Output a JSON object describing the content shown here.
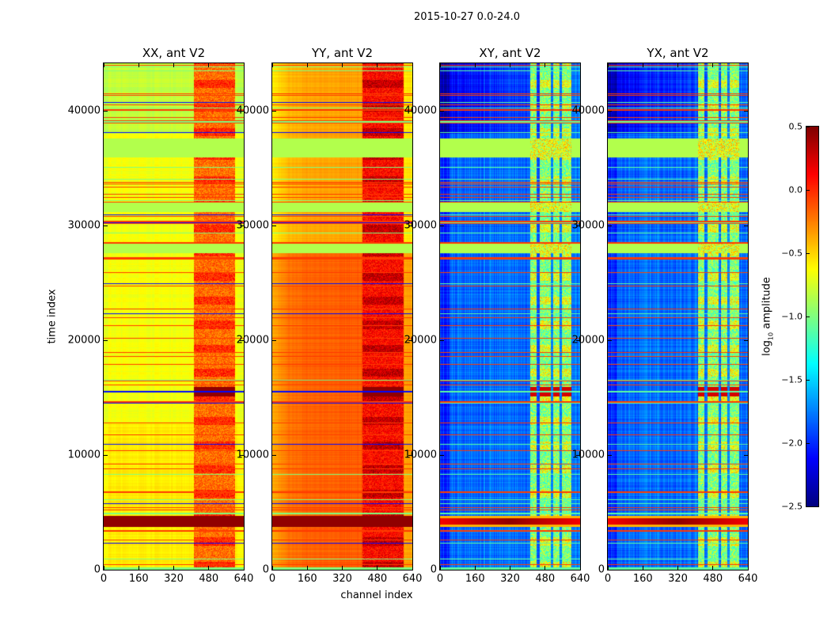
{
  "chart_data": {
    "type": "heatmap",
    "title": "2015-10-27 0.0-24.0",
    "xlabel": "channel index",
    "ylabel": "time index",
    "xlim": [
      0,
      640
    ],
    "ylim": [
      0,
      44140
    ],
    "xticks": [
      "0",
      "160",
      "320",
      "480",
      "640"
    ],
    "yticks": [
      "0",
      "10000",
      "20000",
      "30000",
      "40000"
    ],
    "xtick_values": [
      0,
      160,
      320,
      480,
      640
    ],
    "ytick_values": [
      0,
      10000,
      20000,
      30000,
      40000
    ],
    "colormap": "jet",
    "colorbar": {
      "label_prefix": "log",
      "label_sub": "10",
      "label_suffix": " amplitude",
      "range": [
        -2.5,
        0.5
      ],
      "ticks": [
        "0.5",
        "0.0",
        "−0.5",
        "−1.0",
        "−1.5",
        "−2.0",
        "−2.5"
      ],
      "tick_values": [
        0.5,
        0.0,
        -0.5,
        -1.0,
        -1.5,
        -2.0,
        -2.5
      ]
    },
    "panels": [
      {
        "title": "XX, ant V2",
        "base_log_amp": -0.65,
        "rfi_channel_range": [
          410,
          600
        ],
        "rfi_log_amp": -0.2
      },
      {
        "title": "YY, ant V2",
        "base_log_amp": -0.15,
        "rfi_channel_range": [
          410,
          600
        ],
        "rfi_log_amp": 0.1
      },
      {
        "title": "XY, ant V2",
        "base_log_amp": -1.8,
        "rfi_channel_range": [
          410,
          600
        ],
        "rfi_log_amp": -1.0
      },
      {
        "title": "YX, ant V2",
        "base_log_amp": -1.8,
        "rfi_channel_range": [
          410,
          600
        ],
        "rfi_log_amp": -1.0
      }
    ],
    "flagged_time_ranges": [
      [
        27600,
        28400
      ],
      [
        31200,
        32000
      ],
      [
        35900,
        37600
      ]
    ],
    "flagged_log_amp": -0.85,
    "strong_time_ranges": [
      [
        3700,
        4700
      ]
    ]
  }
}
